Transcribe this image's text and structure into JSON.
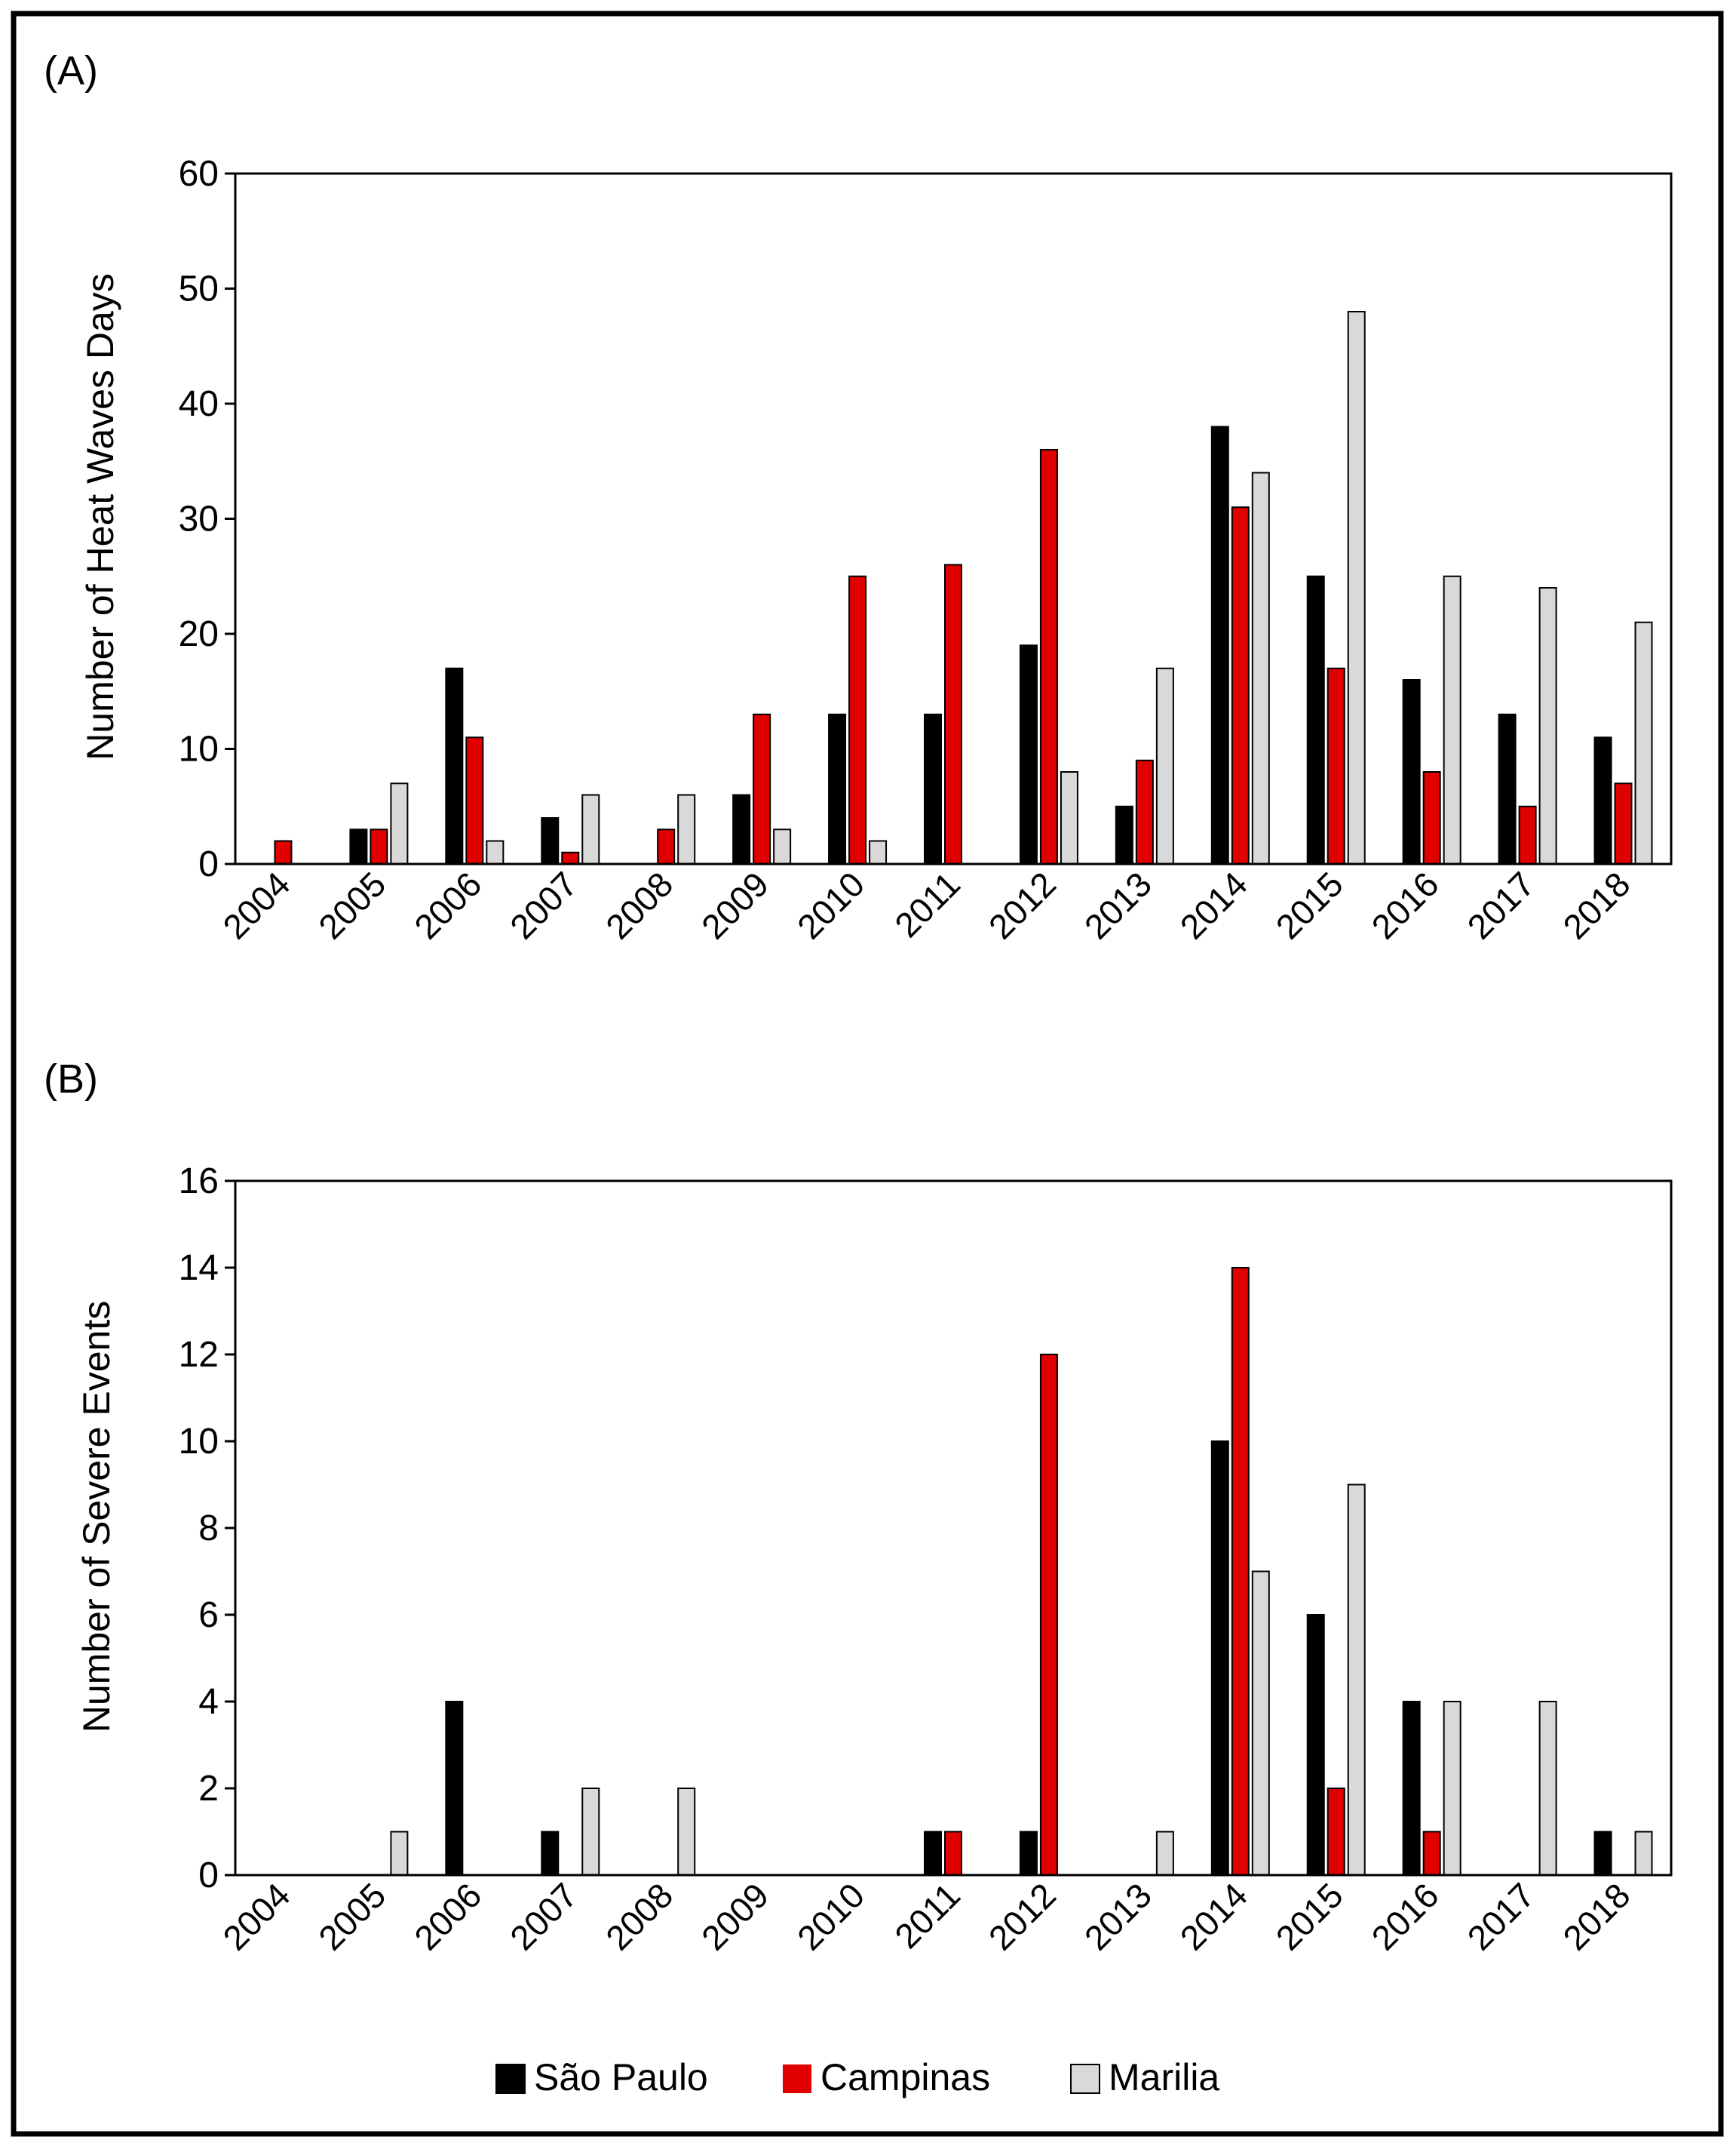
{
  "chart_data": [
    {
      "panel_label": "(A)",
      "type": "bar",
      "title": "",
      "xlabel": "",
      "ylabel": "Number of Heat Waves Days",
      "ylim": [
        0,
        60
      ],
      "yticks": [
        0,
        10,
        20,
        30,
        40,
        50,
        60
      ],
      "grid": false,
      "categories": [
        "2004",
        "2005",
        "2006",
        "2007",
        "2008",
        "2009",
        "2010",
        "2011",
        "2012",
        "2013",
        "2014",
        "2015",
        "2016",
        "2017",
        "2018"
      ],
      "series": [
        {
          "name": "São Paulo",
          "color": "#000000",
          "values": [
            0,
            3,
            17,
            4,
            0,
            6,
            13,
            13,
            19,
            5,
            38,
            25,
            16,
            13,
            11
          ]
        },
        {
          "name": "Campinas",
          "color": "#e00000",
          "values": [
            2,
            3,
            11,
            1,
            3,
            13,
            25,
            26,
            36,
            9,
            31,
            17,
            8,
            5,
            7
          ]
        },
        {
          "name": "Marilia",
          "color": "#d9d9d9",
          "values": [
            0,
            7,
            2,
            6,
            6,
            3,
            2,
            0,
            8,
            17,
            34,
            48,
            25,
            24,
            21
          ]
        }
      ]
    },
    {
      "panel_label": "(B)",
      "type": "bar",
      "title": "",
      "xlabel": "",
      "ylabel": "Number of Severe Events",
      "ylim": [
        0,
        16
      ],
      "yticks": [
        0,
        2,
        4,
        6,
        8,
        10,
        12,
        14,
        16
      ],
      "grid": false,
      "categories": [
        "2004",
        "2005",
        "2006",
        "2007",
        "2008",
        "2009",
        "2010",
        "2011",
        "2012",
        "2013",
        "2014",
        "2015",
        "2016",
        "2017",
        "2018"
      ],
      "series": [
        {
          "name": "São Paulo",
          "color": "#000000",
          "values": [
            0,
            0,
            4,
            1,
            0,
            0,
            0,
            1,
            1,
            0,
            10,
            6,
            4,
            0,
            1
          ]
        },
        {
          "name": "Campinas",
          "color": "#e00000",
          "values": [
            0,
            0,
            0,
            0,
            0,
            0,
            0,
            1,
            12,
            0,
            14,
            2,
            1,
            0,
            0
          ]
        },
        {
          "name": "Marilia",
          "color": "#d9d9d9",
          "values": [
            0,
            1,
            0,
            2,
            2,
            0,
            0,
            0,
            0,
            1,
            7,
            9,
            4,
            4,
            1
          ]
        }
      ]
    }
  ],
  "legend": {
    "placement": "bottom",
    "items": [
      {
        "label": "São Paulo",
        "color": "#000000"
      },
      {
        "label": "Campinas",
        "color": "#e00000"
      },
      {
        "label": "Marilia",
        "color": "#d9d9d9"
      }
    ]
  }
}
